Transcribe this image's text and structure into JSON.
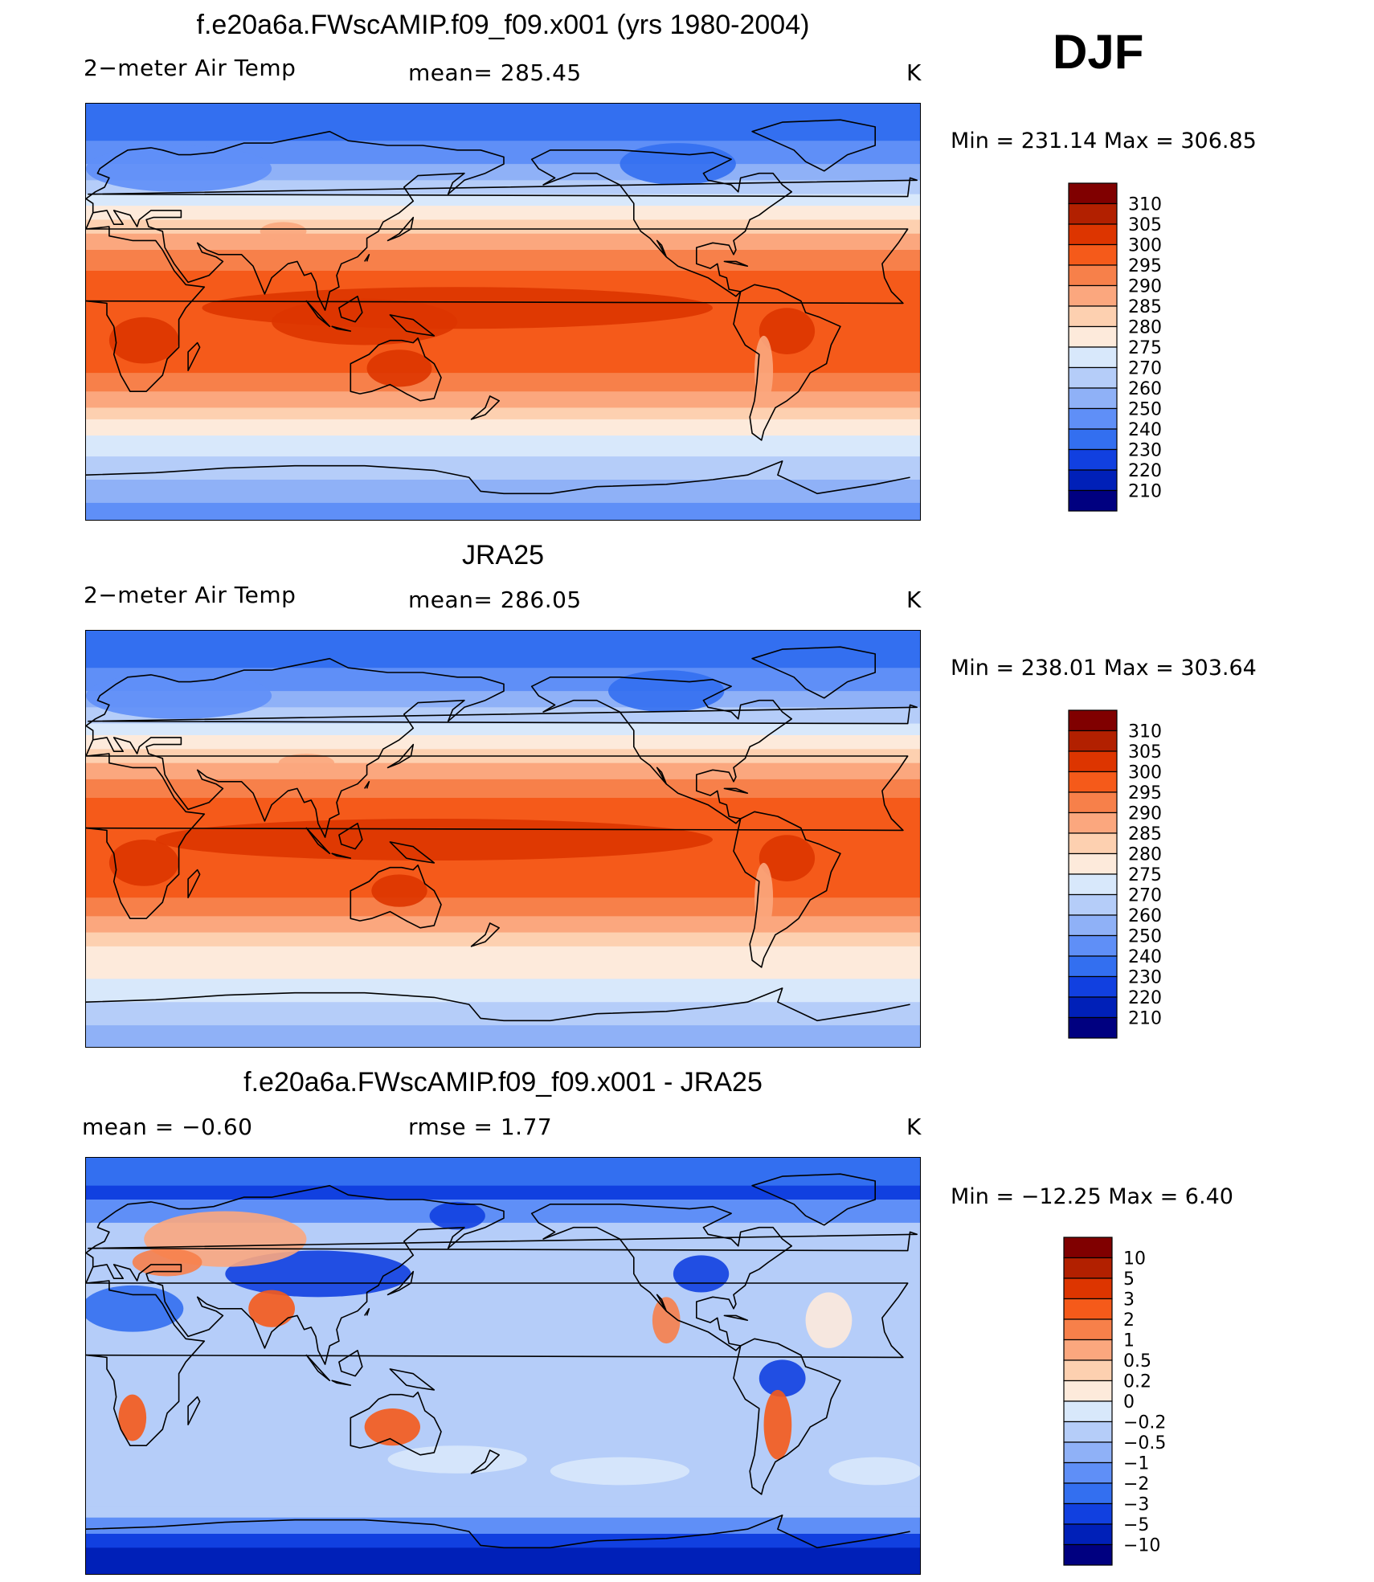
{
  "season": "DJF",
  "panels": [
    {
      "title": "f.e20a6a.FWscAMIP.f09_f09.x001 (yrs 1980-2004)",
      "left_label": "2−meter Air Temp",
      "center_label": "mean=  285.45",
      "unit": "K",
      "minmax": "Min  =  231.14  Max  =  306.85",
      "kind": "model",
      "colorbar": {
        "labels": [
          "310",
          "305",
          "300",
          "295",
          "290",
          "285",
          "280",
          "275",
          "270",
          "260",
          "250",
          "240",
          "230",
          "220",
          "210"
        ],
        "colors": [
          "#800000",
          "#b22000",
          "#dd3500",
          "#f55a1a",
          "#f7804a",
          "#fba77e",
          "#fdd0b0",
          "#fdeadb",
          "#d8e8fb",
          "#b5cdf9",
          "#8fb1f7",
          "#5f8ff7",
          "#336ff0",
          "#1140e0",
          "#0020b8",
          "#000080"
        ]
      }
    },
    {
      "title": "JRA25",
      "left_label": "2−meter Air Temp",
      "center_label": "mean=  286.05",
      "unit": "K",
      "minmax": "Min  =  238.01  Max  =  303.64",
      "kind": "obs",
      "colorbar": {
        "labels": [
          "310",
          "305",
          "300",
          "295",
          "290",
          "285",
          "280",
          "275",
          "270",
          "260",
          "250",
          "240",
          "230",
          "220",
          "210"
        ],
        "colors": [
          "#800000",
          "#b22000",
          "#dd3500",
          "#f55a1a",
          "#f7804a",
          "#fba77e",
          "#fdd0b0",
          "#fdeadb",
          "#d8e8fb",
          "#b5cdf9",
          "#8fb1f7",
          "#5f8ff7",
          "#336ff0",
          "#1140e0",
          "#0020b8",
          "#000080"
        ]
      }
    },
    {
      "title": "f.e20a6a.FWscAMIP.f09_f09.x001 - JRA25",
      "left_label": "mean  =     −0.60",
      "center_label": "rmse  =      1.77",
      "unit": "K",
      "minmax": "Min  =  −12.25  Max  =      6.40",
      "kind": "diff",
      "colorbar": {
        "labels": [
          "10",
          "5",
          "3",
          "2",
          "1",
          "0.5",
          "0.2",
          "0",
          "−0.2",
          "−0.5",
          "−1",
          "−2",
          "−3",
          "−5",
          "−10"
        ],
        "colors": [
          "#800000",
          "#b22000",
          "#dd3500",
          "#f55a1a",
          "#f7804a",
          "#fba77e",
          "#fdd0b0",
          "#fdeadb",
          "#d8e8fb",
          "#b5cdf9",
          "#8fb1f7",
          "#5f8ff7",
          "#336ff0",
          "#1140e0",
          "#0020b8",
          "#000080"
        ]
      }
    }
  ]
}
